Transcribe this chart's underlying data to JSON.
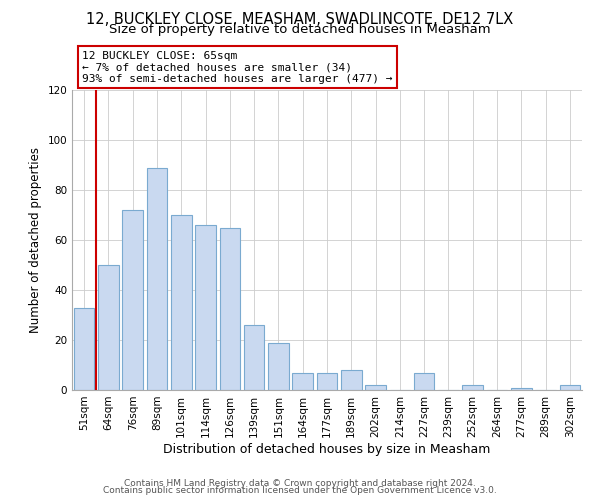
{
  "title1": "12, BUCKLEY CLOSE, MEASHAM, SWADLINCOTE, DE12 7LX",
  "title2": "Size of property relative to detached houses in Measham",
  "xlabel": "Distribution of detached houses by size in Measham",
  "ylabel": "Number of detached properties",
  "bar_labels": [
    "51sqm",
    "64sqm",
    "76sqm",
    "89sqm",
    "101sqm",
    "114sqm",
    "126sqm",
    "139sqm",
    "151sqm",
    "164sqm",
    "177sqm",
    "189sqm",
    "202sqm",
    "214sqm",
    "227sqm",
    "239sqm",
    "252sqm",
    "264sqm",
    "277sqm",
    "289sqm",
    "302sqm"
  ],
  "bar_values": [
    33,
    50,
    72,
    89,
    70,
    66,
    65,
    26,
    19,
    7,
    7,
    8,
    2,
    0,
    7,
    0,
    2,
    0,
    1,
    0,
    2
  ],
  "bar_color": "#c9d9f0",
  "bar_edge_color": "#7aaad0",
  "vline_x": 1,
  "vline_color": "#cc0000",
  "annotation_title": "12 BUCKLEY CLOSE: 65sqm",
  "annotation_line1": "← 7% of detached houses are smaller (34)",
  "annotation_line2": "93% of semi-detached houses are larger (477) →",
  "annotation_box_edge": "#cc0000",
  "ylim": [
    0,
    120
  ],
  "yticks": [
    0,
    20,
    40,
    60,
    80,
    100,
    120
  ],
  "footer1": "Contains HM Land Registry data © Crown copyright and database right 2024.",
  "footer2": "Contains public sector information licensed under the Open Government Licence v3.0.",
  "title1_fontsize": 10.5,
  "title2_fontsize": 9.5,
  "xlabel_fontsize": 9,
  "ylabel_fontsize": 8.5,
  "tick_fontsize": 7.5,
  "footer_fontsize": 6.5,
  "ann_fontsize": 8
}
